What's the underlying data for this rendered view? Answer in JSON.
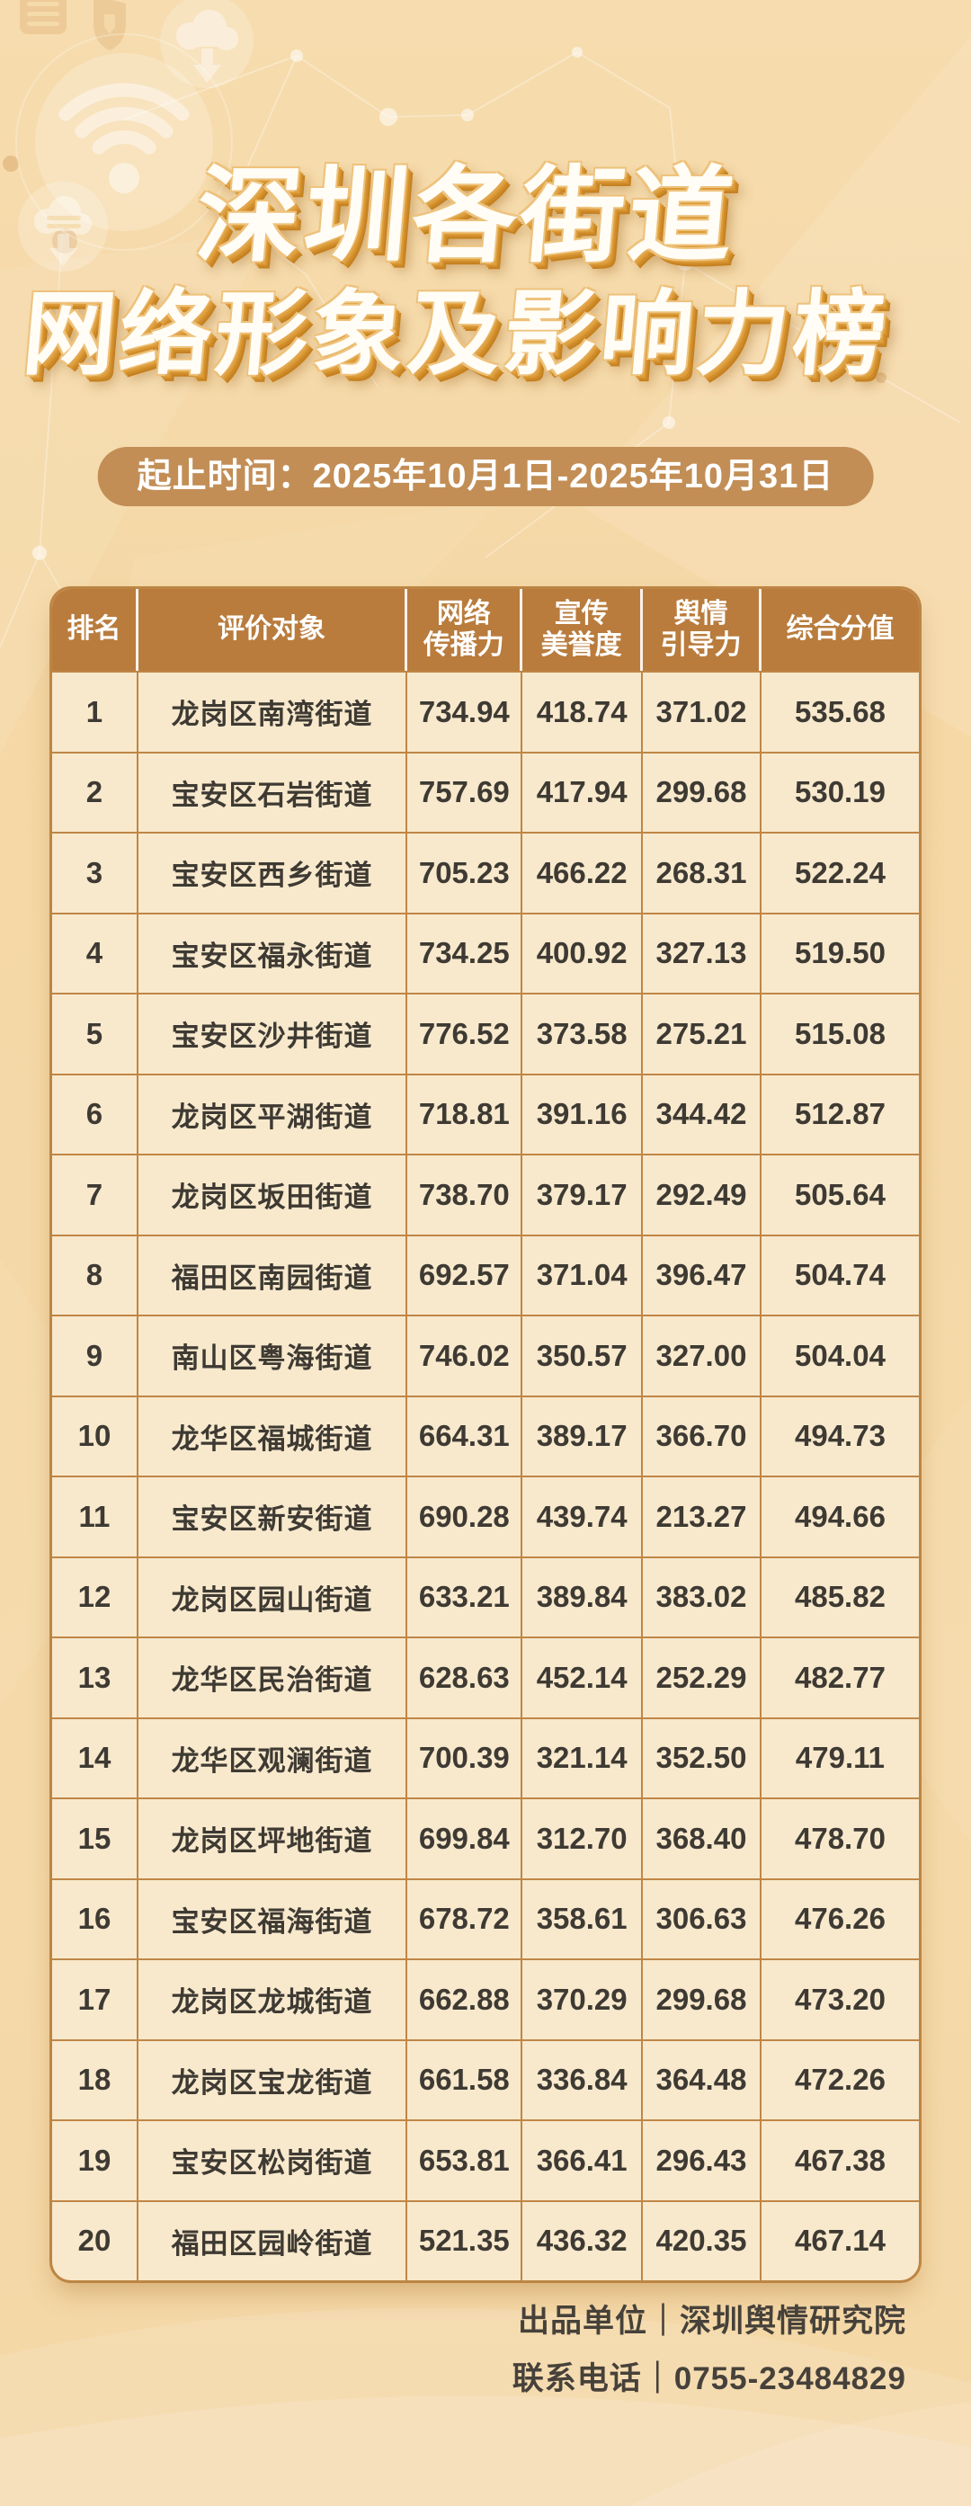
{
  "title": {
    "line1": "深圳各街道",
    "line2": "网络形象及影响力榜"
  },
  "period_banner": "起止时间：2025年10月1日-2025年10月31日",
  "table": {
    "headers": [
      "排名",
      "评价对象",
      "网络\n传播力",
      "宣传\n美誉度",
      "舆情\n引导力",
      "综合分值"
    ]
  },
  "chart_data": {
    "type": "table",
    "title": "深圳各街道网络形象及影响力榜",
    "period": "2025年10月1日-2025年10月31日",
    "columns": [
      "排名",
      "评价对象",
      "网络传播力",
      "宣传美誉度",
      "舆情引导力",
      "综合分值"
    ],
    "rows": [
      [
        "1",
        "龙岗区南湾街道",
        "734.94",
        "418.74",
        "371.02",
        "535.68"
      ],
      [
        "2",
        "宝安区石岩街道",
        "757.69",
        "417.94",
        "299.68",
        "530.19"
      ],
      [
        "3",
        "宝安区西乡街道",
        "705.23",
        "466.22",
        "268.31",
        "522.24"
      ],
      [
        "4",
        "宝安区福永街道",
        "734.25",
        "400.92",
        "327.13",
        "519.50"
      ],
      [
        "5",
        "宝安区沙井街道",
        "776.52",
        "373.58",
        "275.21",
        "515.08"
      ],
      [
        "6",
        "龙岗区平湖街道",
        "718.81",
        "391.16",
        "344.42",
        "512.87"
      ],
      [
        "7",
        "龙岗区坂田街道",
        "738.70",
        "379.17",
        "292.49",
        "505.64"
      ],
      [
        "8",
        "福田区南园街道",
        "692.57",
        "371.04",
        "396.47",
        "504.74"
      ],
      [
        "9",
        "南山区粤海街道",
        "746.02",
        "350.57",
        "327.00",
        "504.04"
      ],
      [
        "10",
        "龙华区福城街道",
        "664.31",
        "389.17",
        "366.70",
        "494.73"
      ],
      [
        "11",
        "宝安区新安街道",
        "690.28",
        "439.74",
        "213.27",
        "494.66"
      ],
      [
        "12",
        "龙岗区园山街道",
        "633.21",
        "389.84",
        "383.02",
        "485.82"
      ],
      [
        "13",
        "龙华区民治街道",
        "628.63",
        "452.14",
        "252.29",
        "482.77"
      ],
      [
        "14",
        "龙华区观澜街道",
        "700.39",
        "321.14",
        "352.50",
        "479.11"
      ],
      [
        "15",
        "龙岗区坪地街道",
        "699.84",
        "312.70",
        "368.40",
        "478.70"
      ],
      [
        "16",
        "宝安区福海街道",
        "678.72",
        "358.61",
        "306.63",
        "476.26"
      ],
      [
        "17",
        "龙岗区龙城街道",
        "662.88",
        "370.29",
        "299.68",
        "473.20"
      ],
      [
        "18",
        "龙岗区宝龙街道",
        "661.58",
        "336.84",
        "364.48",
        "472.26"
      ],
      [
        "19",
        "宝安区松岗街道",
        "653.81",
        "366.41",
        "296.43",
        "467.38"
      ],
      [
        "20",
        "福田区园岭街道",
        "521.35",
        "436.32",
        "420.35",
        "467.14"
      ]
    ]
  },
  "footer": {
    "publisher": "出品单位｜深圳舆情研究院",
    "phone": "联系电话｜0755-23484829"
  },
  "icons": [
    "wifi-icon",
    "cloud-download-icon",
    "cloud-server-icon",
    "server-icon",
    "shield-icon",
    "network-mesh"
  ],
  "colors": {
    "background": "#f5d9a8",
    "header_bg": "#b97c3d",
    "banner_bg": "#c28e56",
    "row_bg": "#f8e9cd",
    "table_border": "#c08646",
    "title_extrude": "#d08c2a",
    "text_dark": "#3e3a33"
  }
}
